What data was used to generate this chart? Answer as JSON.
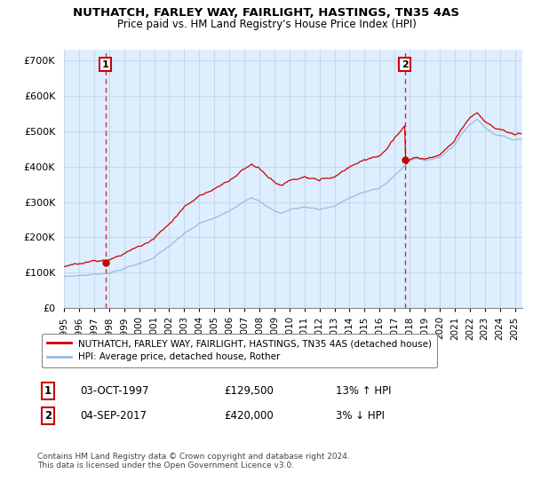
{
  "title": "NUTHATCH, FARLEY WAY, FAIRLIGHT, HASTINGS, TN35 4AS",
  "subtitle": "Price paid vs. HM Land Registry's House Price Index (HPI)",
  "ylabel_ticks": [
    "£0",
    "£100K",
    "£200K",
    "£300K",
    "£400K",
    "£500K",
    "£600K",
    "£700K"
  ],
  "ytick_values": [
    0,
    100000,
    200000,
    300000,
    400000,
    500000,
    600000,
    700000
  ],
  "ylim": [
    0,
    730000
  ],
  "xlim_start": 1995.0,
  "xlim_end": 2025.5,
  "red_line_color": "#cc0000",
  "blue_line_color": "#99bbdd",
  "plot_bg_color": "#ddeeff",
  "marker_color": "#cc0000",
  "marker1_x": 1997.75,
  "marker1_y": 129500,
  "marker2_x": 2017.67,
  "marker2_y": 420000,
  "label1": "1",
  "label2": "2",
  "annotation1_date": "03-OCT-1997",
  "annotation1_price": "£129,500",
  "annotation1_hpi": "13% ↑ HPI",
  "annotation2_date": "04-SEP-2017",
  "annotation2_price": "£420,000",
  "annotation2_hpi": "3% ↓ HPI",
  "legend_line1": "NUTHATCH, FARLEY WAY, FAIRLIGHT, HASTINGS, TN35 4AS (detached house)",
  "legend_line2": "HPI: Average price, detached house, Rother",
  "footer": "Contains HM Land Registry data © Crown copyright and database right 2024.\nThis data is licensed under the Open Government Licence v3.0.",
  "background_color": "#ffffff",
  "grid_color": "#c8d8e8",
  "xtick_years": [
    1995,
    1996,
    1997,
    1998,
    1999,
    2000,
    2001,
    2002,
    2003,
    2004,
    2005,
    2006,
    2007,
    2008,
    2009,
    2010,
    2011,
    2012,
    2013,
    2014,
    2015,
    2016,
    2017,
    2018,
    2019,
    2020,
    2021,
    2022,
    2023,
    2024,
    2025
  ]
}
